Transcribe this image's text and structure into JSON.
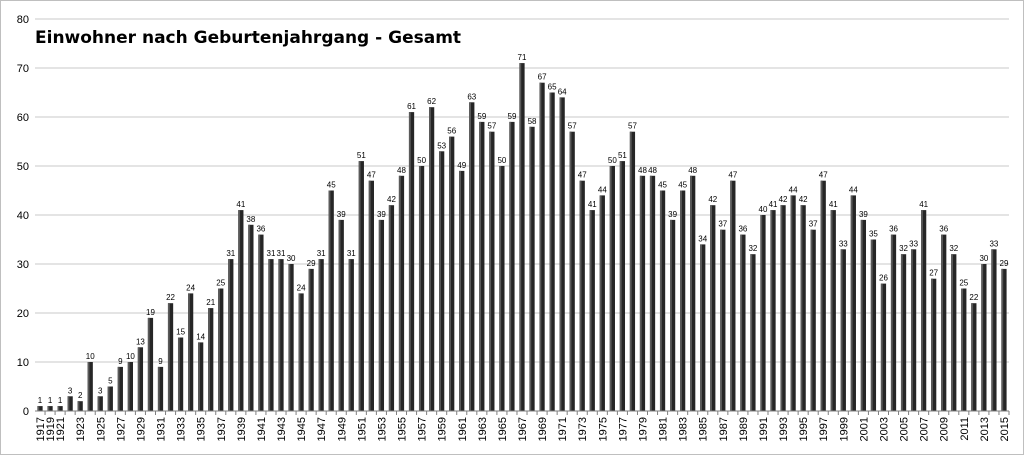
{
  "chart_data": {
    "type": "bar",
    "title": "Einwohner nach Geburtenjahrgang - Gesamt",
    "xlabel": "",
    "ylabel": "",
    "ylim": [
      0,
      80
    ],
    "yticks": [
      0,
      10,
      20,
      30,
      40,
      50,
      60,
      70,
      80
    ],
    "grid": true,
    "legend": "none",
    "bar_color": "#262626",
    "categories": [
      1917,
      1919,
      1921,
      1922,
      1923,
      1924,
      1925,
      1926,
      1927,
      1928,
      1929,
      1930,
      1931,
      1932,
      1933,
      1934,
      1935,
      1936,
      1937,
      1938,
      1939,
      1940,
      1941,
      1942,
      1943,
      1944,
      1945,
      1946,
      1947,
      1948,
      1949,
      1950,
      1951,
      1952,
      1953,
      1954,
      1955,
      1956,
      1957,
      1958,
      1959,
      1960,
      1961,
      1962,
      1963,
      1964,
      1965,
      1966,
      1967,
      1968,
      1969,
      1970,
      1971,
      1972,
      1973,
      1974,
      1975,
      1976,
      1977,
      1978,
      1979,
      1980,
      1981,
      1982,
      1983,
      1984,
      1985,
      1986,
      1987,
      1988,
      1989,
      1990,
      1991,
      1992,
      1993,
      1994,
      1995,
      1996,
      1997,
      1998,
      1999,
      2000,
      2001,
      2002,
      2003,
      2004,
      2005,
      2006,
      2007,
      2008,
      2009,
      2010,
      2011,
      2012,
      2013,
      2014,
      2015
    ],
    "tick_labels": [
      "1917",
      "1919",
      "1921",
      "1923",
      "1925",
      "1927",
      "1929",
      "1931",
      "1933",
      "1935",
      "1937",
      "1939",
      "1941",
      "1943",
      "1945",
      "1947",
      "1949",
      "1951",
      "1953",
      "1955",
      "1957",
      "1959",
      "1961",
      "1963",
      "1965",
      "1967",
      "1969",
      "1971",
      "1973",
      "1975",
      "1977",
      "1979",
      "1981",
      "1983",
      "1985",
      "1987",
      "1989",
      "1991",
      "1993",
      "1995",
      "1997",
      "1999",
      "2001",
      "2003",
      "2005",
      "2007",
      "2009",
      "2011",
      "2013",
      "2015"
    ],
    "values": [
      1,
      1,
      1,
      3,
      2,
      10,
      3,
      5,
      9,
      10,
      13,
      19,
      9,
      22,
      15,
      24,
      14,
      21,
      25,
      31,
      41,
      38,
      36,
      31,
      31,
      30,
      24,
      29,
      31,
      45,
      39,
      31,
      51,
      47,
      39,
      42,
      48,
      61,
      50,
      62,
      53,
      56,
      49,
      63,
      59,
      57,
      50,
      59,
      71,
      58,
      67,
      65,
      64,
      57,
      47,
      41,
      44,
      50,
      51,
      57,
      48,
      48,
      45,
      39,
      45,
      48,
      34,
      42,
      37,
      47,
      36,
      32,
      40,
      41,
      42,
      44,
      42,
      37,
      47,
      41,
      33,
      44,
      39,
      35,
      26,
      36,
      32,
      33,
      41,
      27,
      36,
      32,
      25,
      22,
      30,
      33,
      29
    ]
  }
}
